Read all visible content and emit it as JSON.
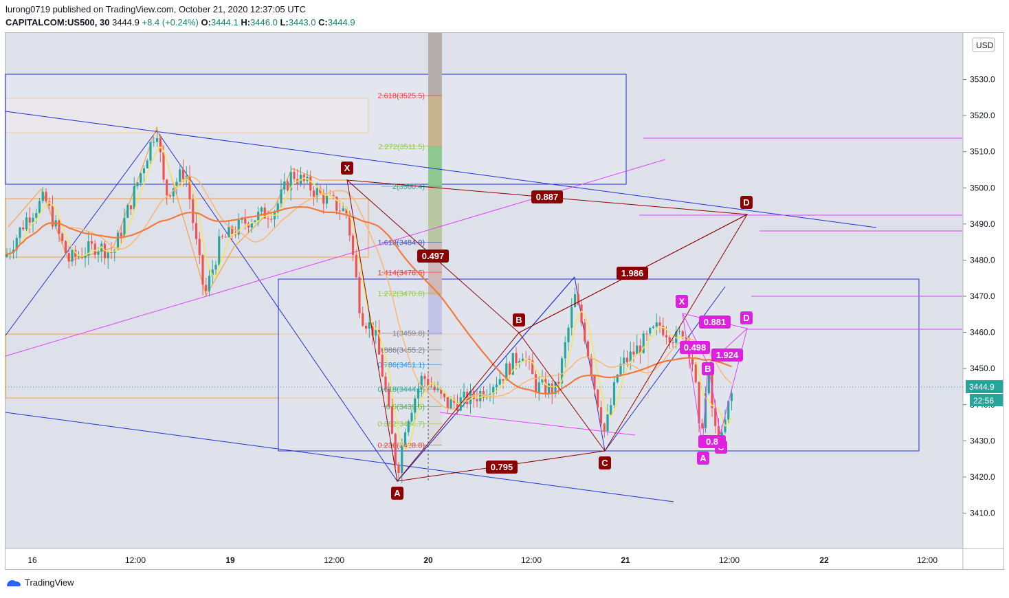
{
  "header": {
    "published": "lurong0719 published on TradingView.com, October 21, 2020 12:37:05 UTC",
    "symbol": "CAPITALCOM:US500, 30",
    "last": "3444.9",
    "change": "+8.4 (+0.24%)",
    "o_label": "O:",
    "o": "3444.1",
    "h_label": "H:",
    "h": "3446.0",
    "l_label": "L:",
    "l": "3443.0",
    "c_label": "C:",
    "c": "3444.9"
  },
  "footer": {
    "brand": "TradingView"
  },
  "colors": {
    "up": "#26a69a",
    "down": "#ef5350",
    "pattern_dark": "#8b0000",
    "pattern_magenta": "#e040fb",
    "blue_line": "#2030d0"
  },
  "chart_data": {
    "type": "candlestick",
    "currency": "USD",
    "y_ticks": [
      3530.0,
      3520.0,
      3510.0,
      3500.0,
      3490.0,
      3480.0,
      3470.0,
      3460.0,
      3450.0,
      3440.0,
      3430.0,
      3420.0,
      3410.0
    ],
    "y_tick_labels": [
      "3530.0",
      "3520.0",
      "3510.0",
      "3500.0",
      "3490.0",
      "3480.0",
      "3470.0",
      "3460.0",
      "3450.0",
      "3440.0",
      "3430.0",
      "3420.0",
      "3410.0"
    ],
    "ylim": [
      3400,
      3540
    ],
    "x_ticks": [
      "16",
      "12:00",
      "19",
      "12:00",
      "20",
      "12:00",
      "21",
      "12:00",
      "22",
      "12:00"
    ],
    "last_price": 3444.9,
    "last_price_label": "3444.9",
    "countdown": "22:56",
    "fib_levels": [
      {
        "label": "2.618(3525.5)",
        "value": 3525.5
      },
      {
        "label": "2.272(3511.5)",
        "value": 3511.5
      },
      {
        "label": "2(3500.4)",
        "value": 3500.4
      },
      {
        "label": "1.618(3484.9)",
        "value": 3484.9
      },
      {
        "label": "1.414(3476.6)",
        "value": 3476.6
      },
      {
        "label": "1.272(3470.8)",
        "value": 3470.8
      },
      {
        "label": "1(3459.8)",
        "value": 3459.8
      },
      {
        "label": "0.886(3455.2)",
        "value": 3455.2
      },
      {
        "label": "0.786(3451.1)",
        "value": 3451.1
      },
      {
        "label": "0.618(3444.3)",
        "value": 3444.3
      },
      {
        "label": "0.5(3439.5)",
        "value": 3439.5
      },
      {
        "label": "0.382(3434.7)",
        "value": 3434.7
      },
      {
        "label": "0.236(3428.8)",
        "value": 3428.8
      }
    ],
    "pattern_large": {
      "points": [
        "X",
        "A",
        "B",
        "C",
        "D"
      ],
      "ratios": [
        "0.887",
        "0.497",
        "1.986",
        "0.795"
      ]
    },
    "pattern_small": {
      "points": [
        "X",
        "A",
        "B",
        "C",
        "D"
      ],
      "ratios": [
        "0.881",
        "0.498",
        "1.924",
        "0.8"
      ]
    }
  }
}
